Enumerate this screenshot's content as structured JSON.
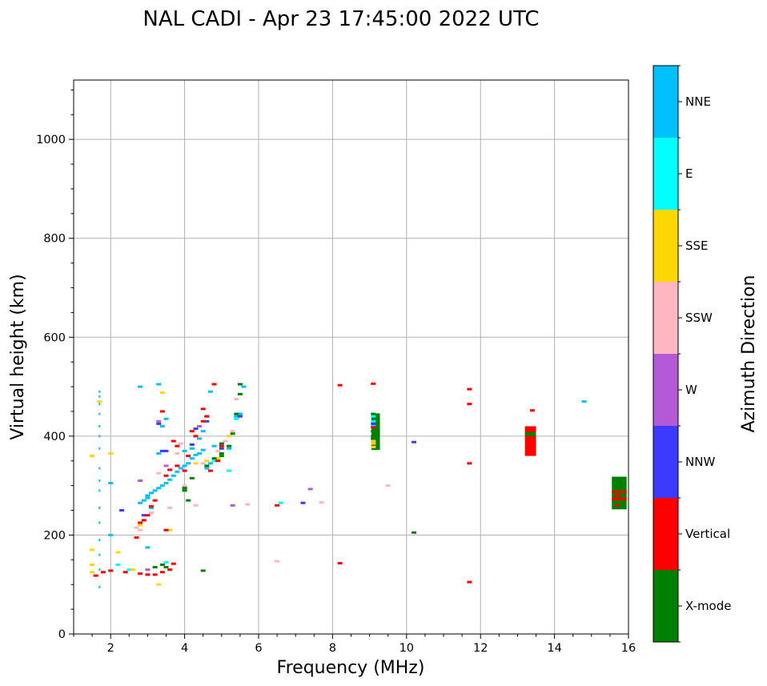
{
  "chart_data": {
    "type": "scatter",
    "title": "NAL CADI - Apr 23 17:45:00 2022 UTC",
    "xlabel": "Frequency (MHz)",
    "ylabel": "Virtual height (km)",
    "xlim": [
      1,
      16
    ],
    "ylim": [
      0,
      1120
    ],
    "xticks": [
      2,
      4,
      6,
      8,
      10,
      12,
      14,
      16
    ],
    "xtick_labels": [
      "2",
      "4",
      "6",
      "8",
      "10",
      "12",
      "14",
      "16"
    ],
    "yticks": [
      0,
      200,
      400,
      600,
      800,
      1000
    ],
    "ytick_labels": [
      "0",
      "200",
      "400",
      "600",
      "800",
      "1000"
    ],
    "grid": true,
    "colorbar": {
      "label": "Azimuth Direction",
      "categories": [
        {
          "name": "X-mode",
          "color": "#008000"
        },
        {
          "name": "Vertical",
          "color": "#ff0000"
        },
        {
          "name": "NNW",
          "color": "#3b3bff"
        },
        {
          "name": "W",
          "color": "#b45ad6"
        },
        {
          "name": "SSW",
          "color": "#ffb6c1"
        },
        {
          "name": "SSE",
          "color": "#ffd700"
        },
        {
          "name": "E",
          "color": "#00ffff"
        },
        {
          "name": "NNE",
          "color": "#00bfff"
        }
      ]
    },
    "series": [
      {
        "name": "NNE",
        "points": [
          [
            1.7,
            95
          ],
          [
            1.7,
            130
          ],
          [
            1.7,
            160
          ],
          [
            1.7,
            190
          ],
          [
            1.7,
            225
          ],
          [
            1.7,
            255
          ],
          [
            1.7,
            290
          ],
          [
            1.7,
            310
          ],
          [
            1.7,
            335
          ],
          [
            1.7,
            375
          ],
          [
            1.7,
            400
          ],
          [
            1.7,
            420
          ],
          [
            1.7,
            445
          ],
          [
            1.7,
            465
          ],
          [
            1.7,
            480
          ],
          [
            1.7,
            490
          ],
          [
            2.0,
            200
          ],
          [
            2.0,
            305
          ],
          [
            2.8,
            265
          ],
          [
            2.9,
            270
          ],
          [
            3.0,
            275
          ],
          [
            3.0,
            280
          ],
          [
            3.1,
            285
          ],
          [
            3.2,
            290
          ],
          [
            3.3,
            295
          ],
          [
            3.4,
            300
          ],
          [
            3.5,
            305
          ],
          [
            3.6,
            312
          ],
          [
            3.7,
            320
          ],
          [
            3.8,
            328
          ],
          [
            3.9,
            335
          ],
          [
            4.0,
            340
          ],
          [
            4.1,
            345
          ],
          [
            4.2,
            355
          ],
          [
            4.3,
            362
          ],
          [
            4.4,
            365
          ],
          [
            4.5,
            372
          ],
          [
            4.6,
            335
          ],
          [
            4.7,
            345
          ],
          [
            4.8,
            380
          ],
          [
            5.0,
            385
          ],
          [
            5.2,
            375
          ],
          [
            5.4,
            440
          ],
          [
            5.5,
            445
          ],
          [
            4.7,
            490
          ],
          [
            3.3,
            505
          ],
          [
            2.8,
            500
          ],
          [
            3.0,
            175
          ],
          [
            3.1,
            255
          ],
          [
            3.3,
            365
          ],
          [
            3.4,
            420
          ],
          [
            3.5,
            435
          ],
          [
            4.2,
            375
          ],
          [
            4.4,
            395
          ],
          [
            4.5,
            410
          ],
          [
            4.0,
            370
          ],
          [
            14.8,
            470
          ],
          [
            5.6,
            500
          ]
        ]
      },
      {
        "name": "E",
        "points": [
          [
            2.2,
            140
          ],
          [
            2.5,
            130
          ],
          [
            3.5,
            145
          ],
          [
            4.8,
            350
          ],
          [
            5.2,
            330
          ],
          [
            6.6,
            265
          ],
          [
            9.1,
            430
          ],
          [
            9.1,
            440
          ],
          [
            9.1,
            420
          ],
          [
            5.4,
            435
          ]
        ]
      },
      {
        "name": "SSE",
        "points": [
          [
            1.5,
            125
          ],
          [
            1.5,
            140
          ],
          [
            1.5,
            170
          ],
          [
            1.5,
            360
          ],
          [
            1.7,
            470
          ],
          [
            2.0,
            365
          ],
          [
            2.2,
            165
          ],
          [
            2.6,
            130
          ],
          [
            2.8,
            220
          ],
          [
            3.0,
            130
          ],
          [
            3.3,
            100
          ],
          [
            3.4,
            488
          ],
          [
            3.6,
            210
          ],
          [
            4.3,
            345
          ],
          [
            4.6,
            350
          ],
          [
            5.2,
            400
          ],
          [
            9.1,
            390
          ],
          [
            9.1,
            385
          ],
          [
            9.1,
            378
          ],
          [
            4.9,
            355
          ]
        ]
      },
      {
        "name": "SSW",
        "points": [
          [
            2.7,
            215
          ],
          [
            2.8,
            210
          ],
          [
            3.1,
            245
          ],
          [
            3.6,
            255
          ],
          [
            3.8,
            365
          ],
          [
            4.0,
            300
          ],
          [
            4.3,
            260
          ],
          [
            4.5,
            345
          ],
          [
            4.9,
            370
          ],
          [
            5.3,
            410
          ],
          [
            5.4,
            475
          ],
          [
            5.7,
            262
          ],
          [
            6.5,
            147
          ],
          [
            7.7,
            266
          ],
          [
            9.5,
            300
          ],
          [
            5.1,
            390
          ],
          [
            3.9,
            385
          ],
          [
            3.3,
            325
          ]
        ]
      },
      {
        "name": "W",
        "points": [
          [
            2.8,
            310
          ],
          [
            3.0,
            130
          ],
          [
            3.3,
            430
          ],
          [
            4.0,
            295
          ],
          [
            4.6,
            440
          ],
          [
            5.3,
            260
          ],
          [
            7.4,
            293
          ],
          [
            3.5,
            340
          ],
          [
            4.4,
            420
          ]
        ]
      },
      {
        "name": "NNW",
        "points": [
          [
            2.3,
            250
          ],
          [
            2.9,
            240
          ],
          [
            3.3,
            425
          ],
          [
            3.5,
            370
          ],
          [
            4.3,
            415
          ],
          [
            4.6,
            430
          ],
          [
            5.0,
            375
          ],
          [
            5.5,
            440
          ],
          [
            7.2,
            265
          ],
          [
            9.1,
            425
          ],
          [
            10.2,
            388
          ],
          [
            3.4,
            370
          ],
          [
            4.2,
            383
          ]
        ]
      },
      {
        "name": "Vertical",
        "points": [
          [
            1.6,
            118
          ],
          [
            1.8,
            125
          ],
          [
            2.0,
            128
          ],
          [
            2.4,
            125
          ],
          [
            2.8,
            122
          ],
          [
            3.0,
            120
          ],
          [
            3.2,
            120
          ],
          [
            3.4,
            125
          ],
          [
            3.6,
            130
          ],
          [
            3.7,
            142
          ],
          [
            2.7,
            195
          ],
          [
            2.8,
            225
          ],
          [
            2.9,
            230
          ],
          [
            3.0,
            240
          ],
          [
            3.1,
            258
          ],
          [
            3.2,
            270
          ],
          [
            3.4,
            450
          ],
          [
            3.5,
            320
          ],
          [
            3.6,
            332
          ],
          [
            3.7,
            390
          ],
          [
            3.8,
            340
          ],
          [
            4.0,
            330
          ],
          [
            4.1,
            360
          ],
          [
            4.3,
            400
          ],
          [
            4.5,
            430
          ],
          [
            4.5,
            455
          ],
          [
            4.6,
            440
          ],
          [
            4.7,
            330
          ],
          [
            4.8,
            505
          ],
          [
            4.9,
            350
          ],
          [
            5.0,
            380
          ],
          [
            6.5,
            260
          ],
          [
            8.2,
            143
          ],
          [
            8.2,
            503
          ],
          [
            9.1,
            506
          ],
          [
            9.1,
            418
          ],
          [
            11.7,
            105
          ],
          [
            11.7,
            345
          ],
          [
            11.7,
            465
          ],
          [
            11.7,
            495
          ],
          [
            13.4,
            452
          ],
          [
            15.7,
            260
          ],
          [
            15.7,
            280
          ],
          [
            3.5,
            210
          ],
          [
            3.8,
            380
          ],
          [
            4.2,
            410
          ]
        ]
      },
      {
        "name": "X-mode",
        "points": [
          [
            3.4,
            140
          ],
          [
            3.5,
            135
          ],
          [
            4.0,
            290
          ],
          [
            4.0,
            295
          ],
          [
            4.1,
            270
          ],
          [
            4.2,
            315
          ],
          [
            4.5,
            128
          ],
          [
            4.8,
            355
          ],
          [
            5.0,
            360
          ],
          [
            5.0,
            385
          ],
          [
            5.2,
            380
          ],
          [
            5.3,
            405
          ],
          [
            5.4,
            445
          ],
          [
            5.5,
            505
          ],
          [
            5.5,
            485
          ],
          [
            9.1,
            445
          ],
          [
            9.1,
            400
          ],
          [
            9.1,
            410
          ],
          [
            10.2,
            205
          ],
          [
            15.7,
            295
          ],
          [
            15.7,
            300
          ],
          [
            4.6,
            340
          ],
          [
            5.0,
            365
          ],
          [
            3.2,
            135
          ],
          [
            9.1,
            395
          ]
        ]
      }
    ],
    "blocks": [
      {
        "name": "Vertical",
        "x": [
          13.2,
          13.5
        ],
        "y": [
          360,
          420
        ]
      },
      {
        "name": "X-mode",
        "x": [
          13.2,
          13.5
        ],
        "y": [
          400,
          408
        ]
      },
      {
        "name": "X-mode",
        "x": [
          15.55,
          15.95
        ],
        "y": [
          252,
          318
        ]
      },
      {
        "name": "Vertical",
        "x": [
          15.55,
          15.95
        ],
        "y": [
          270,
          276
        ]
      },
      {
        "name": "Vertical",
        "x": [
          15.55,
          15.95
        ],
        "y": [
          285,
          290
        ]
      },
      {
        "name": "X-mode",
        "x": [
          9.05,
          9.28
        ],
        "y": [
          372,
          446
        ]
      }
    ]
  }
}
